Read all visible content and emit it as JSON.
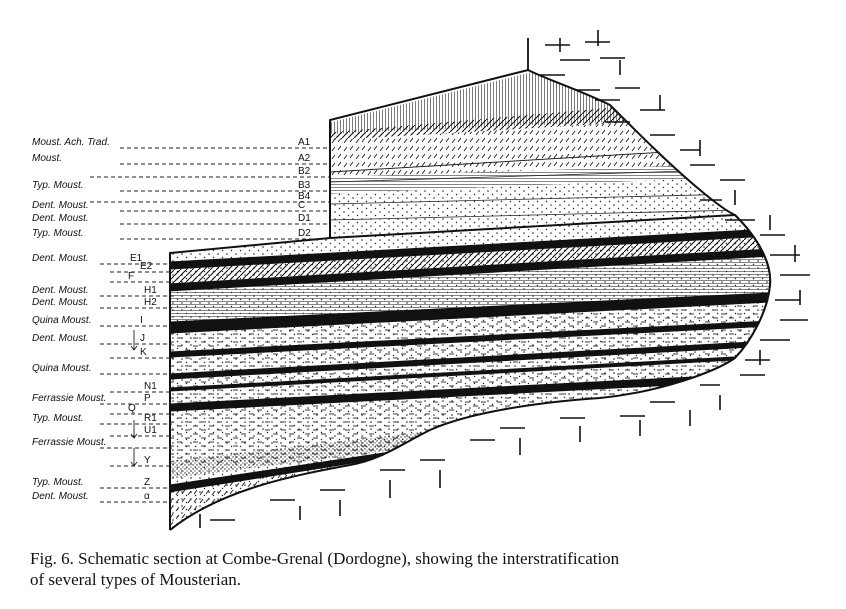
{
  "left_labels": [
    {
      "label": "Moust. Ach. Trad.",
      "code": "A1"
    },
    {
      "label": "Moust.",
      "code": "A2"
    },
    {
      "label": "",
      "code": "B2"
    },
    {
      "label": "Typ. Moust.",
      "code": "B3"
    },
    {
      "label": "",
      "code": "B4"
    },
    {
      "label": "Dent. Moust.",
      "code": "C"
    },
    {
      "label": "Dent. Moust.",
      "code": "D1"
    },
    {
      "label": "Typ. Moust.",
      "code": "D2"
    },
    {
      "label": "Dent. Moust.",
      "code": "E1"
    },
    {
      "label": "",
      "code": "E2"
    },
    {
      "label": "",
      "code": "F"
    },
    {
      "label": "Dent. Moust.",
      "code": "H1"
    },
    {
      "label": "Dent. Moust.",
      "code": "H2"
    },
    {
      "label": "Quina Moust.",
      "code": "I"
    },
    {
      "label": "Dent. Moust.",
      "code": "J"
    },
    {
      "label": "",
      "code": "K"
    },
    {
      "label": "Quina Moust.",
      "code": ""
    },
    {
      "label": "",
      "code": "N1"
    },
    {
      "label": "Ferrassie Moust.",
      "code": "P"
    },
    {
      "label": "",
      "code": "Q"
    },
    {
      "label": "Typ. Moust.",
      "code": "R1"
    },
    {
      "label": "",
      "code": "U1"
    },
    {
      "label": "Ferrassie Moust.",
      "code": ""
    },
    {
      "label": "",
      "code": "Y"
    },
    {
      "label": "Typ. Moust.",
      "code": "Z"
    },
    {
      "label": "Dent. Moust.",
      "code": "α"
    }
  ],
  "caption": {
    "line1": "Fig. 6. Schematic section at Combe-Grenal (Dordogne), showing the interstratification",
    "line2": "of several types of Mousterian."
  }
}
